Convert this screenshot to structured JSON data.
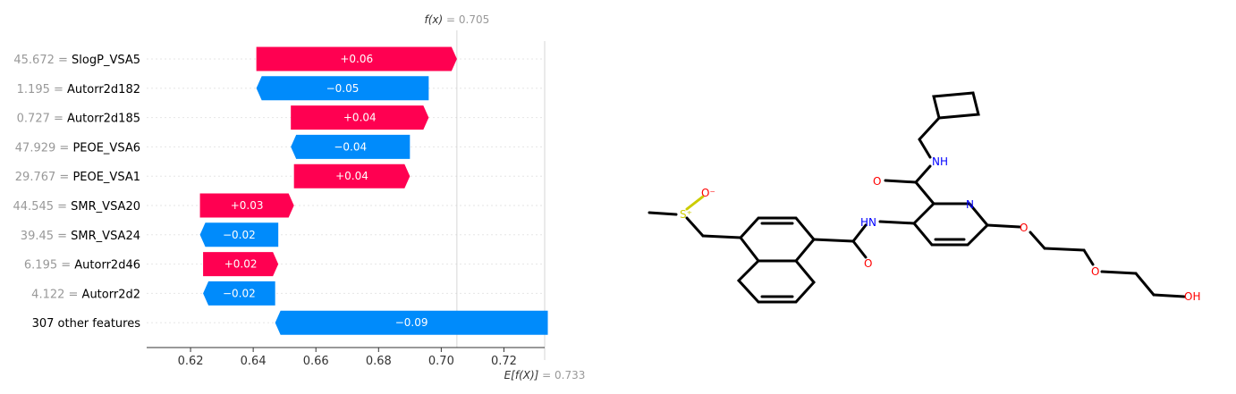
{
  "chart_data": {
    "type": "bar",
    "subtype": "shap-waterfall",
    "base_value": 0.733,
    "output_value": 0.705,
    "fx_label": "f(x)",
    "fx_value_text": "= 0.705",
    "efx_label": "E[f(X)]",
    "efx_value_text": "= 0.733",
    "xlim": [
      0.606,
      0.733
    ],
    "xticks": [
      0.62,
      0.64,
      0.66,
      0.68,
      0.7,
      0.72
    ],
    "xtick_labels": [
      "0.62",
      "0.64",
      "0.66",
      "0.68",
      "0.70",
      "0.72"
    ],
    "features": [
      {
        "value": "45.672",
        "name": "SlogP_VSA5",
        "contribution": 0.064,
        "label": "+0.06"
      },
      {
        "value": "1.195",
        "name": "Autorr2d182",
        "contribution": -0.055,
        "label": "−0.05"
      },
      {
        "value": "0.727",
        "name": "Autorr2d185",
        "contribution": 0.044,
        "label": "+0.04"
      },
      {
        "value": "47.929",
        "name": "PEOE_VSA6",
        "contribution": -0.038,
        "label": "−0.04"
      },
      {
        "value": "29.767",
        "name": "PEOE_VSA1",
        "contribution": 0.037,
        "label": "+0.04"
      },
      {
        "value": "44.545",
        "name": "SMR_VSA20",
        "contribution": 0.03,
        "label": "+0.03"
      },
      {
        "value": "39.45",
        "name": "SMR_VSA24",
        "contribution": -0.025,
        "label": "−0.02"
      },
      {
        "value": "6.195",
        "name": "Autorr2d46",
        "contribution": 0.024,
        "label": "+0.02"
      },
      {
        "value": "4.122",
        "name": "Autorr2d2",
        "contribution": -0.023,
        "label": "−0.02"
      },
      {
        "value": "",
        "name": "307 other features",
        "contribution": -0.087,
        "label": "−0.09"
      }
    ],
    "colors": {
      "positive": "#ff0051",
      "negative": "#008bfb"
    }
  },
  "molecule": {
    "atom_labels": [
      "O⁻",
      "S⁺",
      "NH",
      "O",
      "N",
      "HN",
      "O",
      "O",
      "O",
      "OH"
    ],
    "colors": {
      "bond": "#000000",
      "oxygen": "#ff0000",
      "nitrogen": "#0000ff",
      "sulfur": "#cccc00"
    }
  }
}
